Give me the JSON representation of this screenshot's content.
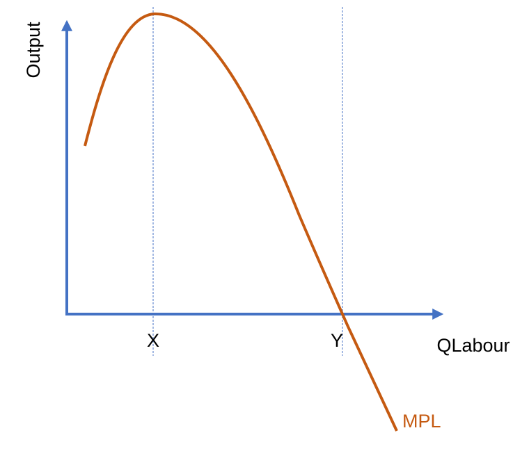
{
  "axes": {
    "y_label": "Output",
    "x_label": "QLabour"
  },
  "markers": {
    "x": "X",
    "y": "Y"
  },
  "curve": {
    "label": "MPL"
  }
}
